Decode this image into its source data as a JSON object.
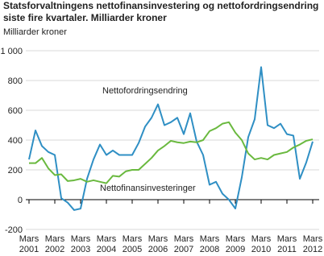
{
  "chart_data": {
    "type": "line",
    "title_lines": [
      "Statsforvaltningens nettofinansinvestering og nettofordringsendring",
      "siste fire kvartaler. Milliarder kroner"
    ],
    "y_label": "Milliarder kroner",
    "categories": [
      "Mars 2001",
      null,
      null,
      null,
      "Mars 2002",
      null,
      null,
      null,
      "Mars 2003",
      null,
      null,
      null,
      "Mars 2004",
      null,
      null,
      null,
      "Mars 2005",
      null,
      null,
      null,
      "Mars 2006",
      null,
      null,
      null,
      "Mars 2007",
      null,
      null,
      null,
      "Mars 2008",
      null,
      null,
      null,
      "Mars 2009",
      null,
      null,
      null,
      "Mars 2010",
      null,
      null,
      null,
      "Mars 2011",
      null,
      null,
      null,
      "Mars 2012"
    ],
    "series": [
      {
        "name": "Nettofordringsendring",
        "color": "#2f8fc4",
        "values": [
          270,
          465,
          360,
          320,
          300,
          10,
          -20,
          -70,
          -60,
          140,
          270,
          370,
          300,
          330,
          300,
          300,
          300,
          380,
          490,
          550,
          640,
          500,
          520,
          550,
          440,
          580,
          390,
          300,
          100,
          120,
          40,
          0,
          -60,
          150,
          420,
          540,
          890,
          500,
          480,
          510,
          440,
          430,
          140,
          250,
          390
        ]
      },
      {
        "name": "Nettofinansinvesteringer",
        "color": "#6ab93f",
        "values": [
          245,
          245,
          280,
          210,
          165,
          170,
          125,
          130,
          140,
          120,
          130,
          120,
          110,
          160,
          155,
          190,
          200,
          200,
          240,
          280,
          330,
          360,
          395,
          385,
          380,
          390,
          385,
          400,
          460,
          480,
          510,
          520,
          450,
          400,
          310,
          270,
          280,
          270,
          300,
          310,
          320,
          350,
          370,
          395,
          405
        ]
      }
    ],
    "ylim": [
      -200,
      1000
    ],
    "yticks": [
      -200,
      0,
      200,
      400,
      600,
      {
        "value": 800,
        "label": "800"
      },
      {
        "value": 1000,
        "label": "1 000"
      }
    ],
    "grid": true
  }
}
